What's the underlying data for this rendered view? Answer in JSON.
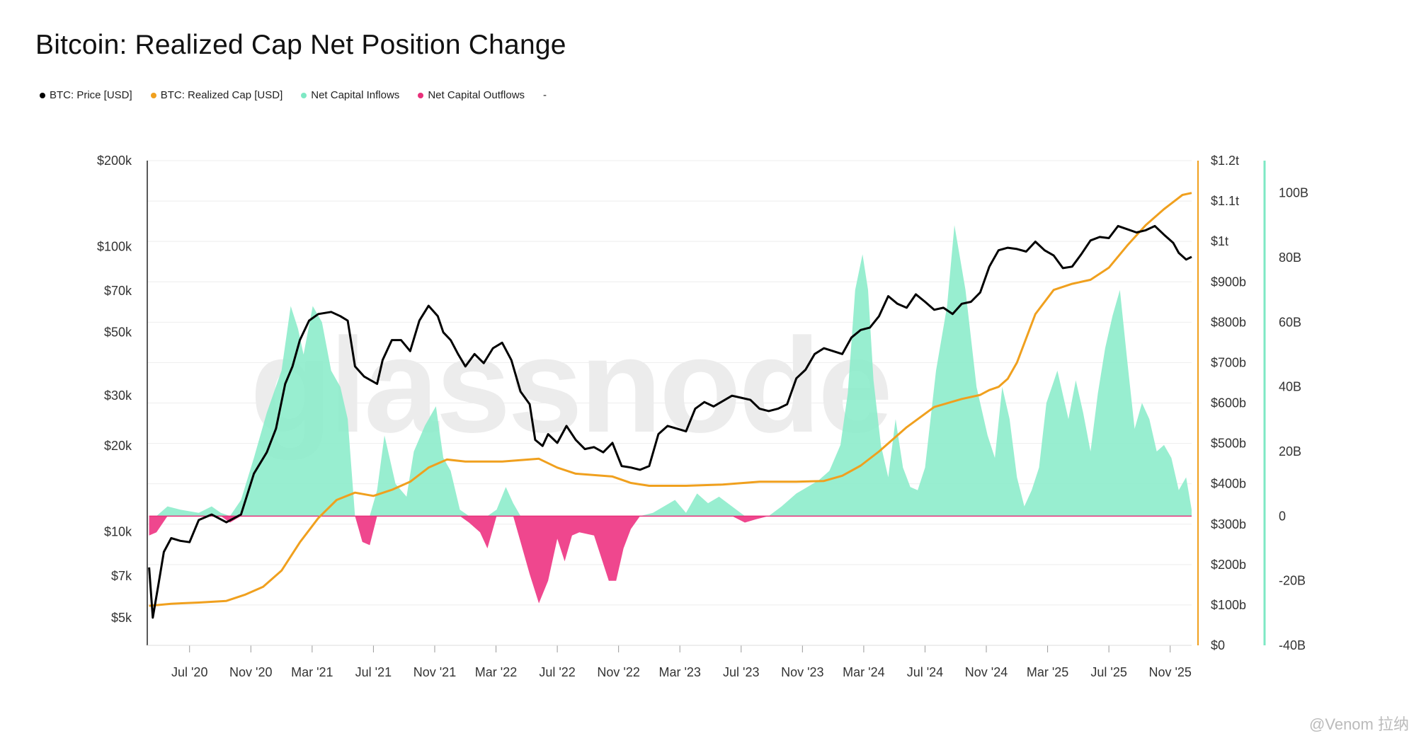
{
  "title": "Bitcoin: Realized Cap Net Position Change",
  "legend": [
    {
      "label": "BTC: Price [USD]",
      "color": "#000000"
    },
    {
      "label": "BTC: Realized Cap [USD]",
      "color": "#f0a01e"
    },
    {
      "label": "Net Capital Inflows",
      "color": "#7ee8c4"
    },
    {
      "label": "Net Capital Outflows",
      "color": "#e8307a"
    },
    {
      "label": "-",
      "color": ""
    }
  ],
  "watermark": "glassnode",
  "credit": "@Venom 拉纳",
  "colors": {
    "price": "#000000",
    "realized_cap": "#f0a01e",
    "inflow": "#8deccb",
    "outflow": "#ee3d88",
    "grid": "#eeeeee"
  },
  "chart_data": {
    "type": "line",
    "title": "Bitcoin: Realized Cap Net Position Change",
    "x_ticks": [
      "Jul '20",
      "Nov '20",
      "Mar '21",
      "Jul '21",
      "Nov '21",
      "Mar '22",
      "Jul '22",
      "Nov '22",
      "Mar '23",
      "Jul '23",
      "Nov '23",
      "Mar '24",
      "Jul '24",
      "Nov '24",
      "Mar '25",
      "Jul '25",
      "Nov '25"
    ],
    "x_range": [
      2020.27,
      2025.95
    ],
    "axes": {
      "price": {
        "scale": "log",
        "ticks": [
          "$5k",
          "$7k",
          "$10k",
          "$20k",
          "$30k",
          "$50k",
          "$70k",
          "$100k",
          "$200k"
        ],
        "tick_values": [
          5000,
          7000,
          10000,
          20000,
          30000,
          50000,
          70000,
          100000,
          200000
        ],
        "range": [
          4000,
          200000
        ]
      },
      "realized_cap": {
        "ticks": [
          "$0",
          "$100b",
          "$200b",
          "$300b",
          "$400b",
          "$500b",
          "$600b",
          "$700b",
          "$800b",
          "$900b",
          "$1t",
          "$1.1t",
          "$1.2t"
        ],
        "tick_values": [
          0,
          100,
          200,
          300,
          400,
          500,
          600,
          700,
          800,
          900,
          1000,
          1100,
          1200
        ],
        "range": [
          0,
          1200
        ],
        "unit": "billion USD"
      },
      "net_position": {
        "ticks": [
          "-40B",
          "-20B",
          "0",
          "20B",
          "40B",
          "60B",
          "80B",
          "100B"
        ],
        "tick_values": [
          -40,
          -20,
          0,
          20,
          40,
          60,
          80,
          100
        ],
        "range": [
          -40,
          110
        ],
        "unit": "billion USD"
      }
    },
    "series": [
      {
        "name": "BTC: Price [USD]",
        "axis": "price",
        "x": [
          2020.28,
          2020.3,
          2020.33,
          2020.36,
          2020.4,
          2020.45,
          2020.5,
          2020.55,
          2020.62,
          2020.7,
          2020.78,
          2020.85,
          2020.92,
          2020.97,
          2021.02,
          2021.06,
          2021.1,
          2021.15,
          2021.2,
          2021.27,
          2021.32,
          2021.36,
          2021.4,
          2021.45,
          2021.52,
          2021.55,
          2021.6,
          2021.65,
          2021.7,
          2021.75,
          2021.8,
          2021.85,
          2021.88,
          2021.92,
          2021.96,
          2022.0,
          2022.05,
          2022.1,
          2022.15,
          2022.2,
          2022.25,
          2022.3,
          2022.35,
          2022.38,
          2022.42,
          2022.45,
          2022.5,
          2022.55,
          2022.6,
          2022.65,
          2022.7,
          2022.75,
          2022.8,
          2022.85,
          2022.9,
          2022.95,
          2023.0,
          2023.05,
          2023.1,
          2023.15,
          2023.2,
          2023.25,
          2023.3,
          2023.35,
          2023.45,
          2023.5,
          2023.55,
          2023.6,
          2023.65,
          2023.7,
          2023.75,
          2023.8,
          2023.85,
          2023.9,
          2023.95,
          2024.0,
          2024.05,
          2024.1,
          2024.15,
          2024.2,
          2024.25,
          2024.3,
          2024.35,
          2024.4,
          2024.45,
          2024.5,
          2024.55,
          2024.6,
          2024.65,
          2024.7,
          2024.75,
          2024.8,
          2024.85,
          2024.9,
          2024.95,
          2025.0,
          2025.05,
          2025.1,
          2025.15,
          2025.2,
          2025.25,
          2025.3,
          2025.35,
          2025.4,
          2025.45,
          2025.5,
          2025.55,
          2025.6,
          2025.65,
          2025.7,
          2025.75,
          2025.8,
          2025.85,
          2025.88,
          2025.92,
          2025.95
        ],
        "values": [
          7500,
          5000,
          6500,
          8500,
          9500,
          9300,
          9200,
          11000,
          11500,
          10800,
          11500,
          16000,
          19000,
          23000,
          33000,
          38000,
          47000,
          55000,
          58000,
          59000,
          57000,
          55000,
          38000,
          35000,
          33000,
          40000,
          47000,
          47000,
          43000,
          55000,
          62000,
          57000,
          50000,
          47000,
          42000,
          38000,
          42000,
          39000,
          44000,
          46000,
          40000,
          31000,
          28000,
          21000,
          20000,
          22000,
          20500,
          23500,
          21000,
          19500,
          19800,
          19000,
          20500,
          17000,
          16800,
          16500,
          17000,
          22000,
          23500,
          23000,
          22500,
          27000,
          28500,
          27500,
          30000,
          29500,
          29000,
          27000,
          26500,
          27000,
          28000,
          34500,
          37000,
          42000,
          44000,
          43000,
          42000,
          48000,
          51000,
          52000,
          57000,
          67000,
          63000,
          61000,
          68000,
          64000,
          60000,
          61000,
          58000,
          63000,
          64000,
          69000,
          85000,
          97000,
          99000,
          98000,
          96000,
          104000,
          97000,
          93000,
          84000,
          85000,
          94000,
          105000,
          108000,
          107000,
          118000,
          115000,
          112000,
          114000,
          118000,
          110000,
          103000,
          95000,
          90000,
          92000
        ]
      },
      {
        "name": "BTC: Realized Cap [USD]",
        "axis": "realized_cap",
        "x": [
          2020.28,
          2020.4,
          2020.55,
          2020.7,
          2020.8,
          2020.9,
          2021.0,
          2021.1,
          2021.2,
          2021.3,
          2021.4,
          2021.5,
          2021.6,
          2021.7,
          2021.8,
          2021.9,
          2022.0,
          2022.2,
          2022.4,
          2022.5,
          2022.6,
          2022.8,
          2022.9,
          2023.0,
          2023.2,
          2023.4,
          2023.6,
          2023.8,
          2023.95,
          2024.05,
          2024.15,
          2024.25,
          2024.4,
          2024.55,
          2024.7,
          2024.8,
          2024.85,
          2024.9,
          2024.95,
          2025.0,
          2025.1,
          2025.2,
          2025.3,
          2025.4,
          2025.5,
          2025.6,
          2025.7,
          2025.8,
          2025.9,
          2025.95
        ],
        "values": [
          98,
          103,
          106,
          110,
          125,
          145,
          185,
          255,
          315,
          360,
          378,
          370,
          385,
          405,
          440,
          460,
          455,
          455,
          462,
          440,
          425,
          418,
          402,
          395,
          395,
          398,
          405,
          405,
          407,
          420,
          445,
          480,
          540,
          590,
          610,
          620,
          632,
          640,
          660,
          700,
          820,
          880,
          895,
          905,
          935,
          990,
          1040,
          1080,
          1115,
          1120
        ]
      },
      {
        "name": "Net Capital Inflows / Outflows",
        "axis": "net_position",
        "x": [
          2020.28,
          2020.32,
          2020.38,
          2020.45,
          2020.55,
          2020.62,
          2020.67,
          2020.72,
          2020.78,
          2020.85,
          2020.92,
          2021.0,
          2021.05,
          2021.09,
          2021.12,
          2021.17,
          2021.22,
          2021.27,
          2021.32,
          2021.36,
          2021.4,
          2021.44,
          2021.48,
          2021.52,
          2021.56,
          2021.62,
          2021.68,
          2021.72,
          2021.78,
          2021.84,
          2021.88,
          2021.92,
          2021.97,
          2022.02,
          2022.08,
          2022.12,
          2022.17,
          2022.22,
          2022.26,
          2022.3,
          2022.35,
          2022.4,
          2022.45,
          2022.5,
          2022.54,
          2022.58,
          2022.62,
          2022.7,
          2022.78,
          2022.82,
          2022.86,
          2022.9,
          2022.95,
          2023.02,
          2023.08,
          2023.14,
          2023.2,
          2023.26,
          2023.32,
          2023.38,
          2023.45,
          2023.52,
          2023.58,
          2023.65,
          2023.72,
          2023.8,
          2023.86,
          2023.92,
          2023.98,
          2024.04,
          2024.08,
          2024.12,
          2024.16,
          2024.19,
          2024.22,
          2024.26,
          2024.3,
          2024.34,
          2024.38,
          2024.42,
          2024.46,
          2024.5,
          2024.56,
          2024.62,
          2024.66,
          2024.72,
          2024.78,
          2024.84,
          2024.88,
          2024.92,
          2024.96,
          2025.0,
          2025.04,
          2025.08,
          2025.12,
          2025.16,
          2025.22,
          2025.28,
          2025.32,
          2025.36,
          2025.4,
          2025.44,
          2025.48,
          2025.52,
          2025.56,
          2025.6,
          2025.64,
          2025.68,
          2025.72,
          2025.76,
          2025.8,
          2025.84,
          2025.88,
          2025.92,
          2025.95
        ],
        "values": [
          -6,
          -5,
          3,
          2,
          1,
          3,
          1,
          -2,
          5,
          18,
          32,
          45,
          65,
          58,
          50,
          65,
          60,
          45,
          40,
          30,
          0,
          -8,
          -9,
          8,
          25,
          10,
          6,
          20,
          28,
          34,
          18,
          14,
          2,
          -2,
          -5,
          -10,
          2,
          9,
          4,
          -8,
          -18,
          -27,
          -20,
          -7,
          -14,
          -6,
          -5,
          -6,
          -20,
          -20,
          -10,
          -4,
          0,
          1,
          3,
          5,
          1,
          7,
          4,
          6,
          3,
          -2,
          -1,
          0,
          3,
          7,
          9,
          11,
          14,
          22,
          38,
          70,
          81,
          70,
          42,
          22,
          12,
          30,
          15,
          9,
          8,
          15,
          45,
          65,
          90,
          70,
          40,
          25,
          18,
          40,
          30,
          12,
          3,
          8,
          15,
          35,
          45,
          30,
          42,
          32,
          20,
          38,
          52,
          62,
          70,
          48,
          27,
          35,
          30,
          20,
          22,
          18,
          8,
          12,
          2
        ]
      }
    ]
  }
}
